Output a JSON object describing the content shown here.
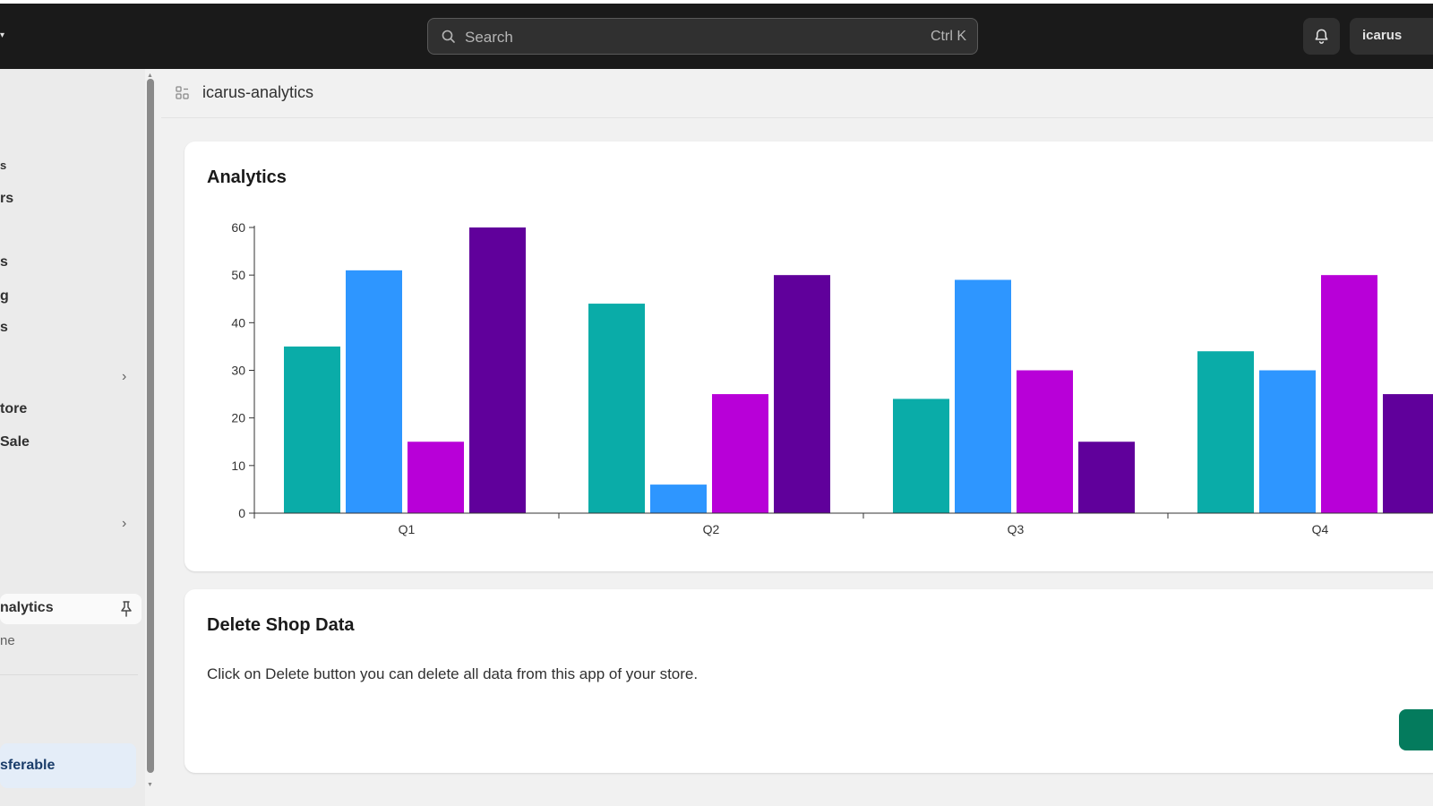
{
  "topbar": {
    "search_placeholder": "Search",
    "search_shortcut": "Ctrl K",
    "store_label": "icarus"
  },
  "sidebar": {
    "items": [
      {
        "label": "s"
      },
      {
        "label": "rs"
      },
      {
        "label": "s"
      },
      {
        "label": "g"
      },
      {
        "label": "s"
      },
      {
        "label": "tore"
      },
      {
        "label": "Sale"
      }
    ],
    "active_app": "nalytics",
    "active_sub": "ne",
    "bottom_item": "sferable"
  },
  "page": {
    "app_title": "icarus-analytics"
  },
  "analytics_card": {
    "title": "Analytics"
  },
  "delete_card": {
    "title": "Delete Shop Data",
    "description": "Click on Delete button you can delete all data from this app of your store."
  },
  "chart_data": {
    "type": "bar",
    "categories": [
      "Q1",
      "Q2",
      "Q3",
      "Q4"
    ],
    "ylim": [
      0,
      60
    ],
    "yticks": [
      0,
      10,
      20,
      30,
      40,
      50,
      60
    ],
    "series": [
      {
        "color": "#0aaca8",
        "values": [
          35,
          44,
          24,
          34
        ]
      },
      {
        "color": "#2e96ff",
        "values": [
          51,
          6,
          49,
          30
        ]
      },
      {
        "color": "#b800d8",
        "values": [
          15,
          25,
          30,
          50
        ]
      },
      {
        "color": "#60009b",
        "values": [
          60,
          50,
          15,
          25
        ]
      }
    ]
  },
  "colors": {
    "topbar_bg": "#1a1a1a",
    "delete_button": "#047b5d",
    "active_nav_bg": "#e4edf8"
  }
}
